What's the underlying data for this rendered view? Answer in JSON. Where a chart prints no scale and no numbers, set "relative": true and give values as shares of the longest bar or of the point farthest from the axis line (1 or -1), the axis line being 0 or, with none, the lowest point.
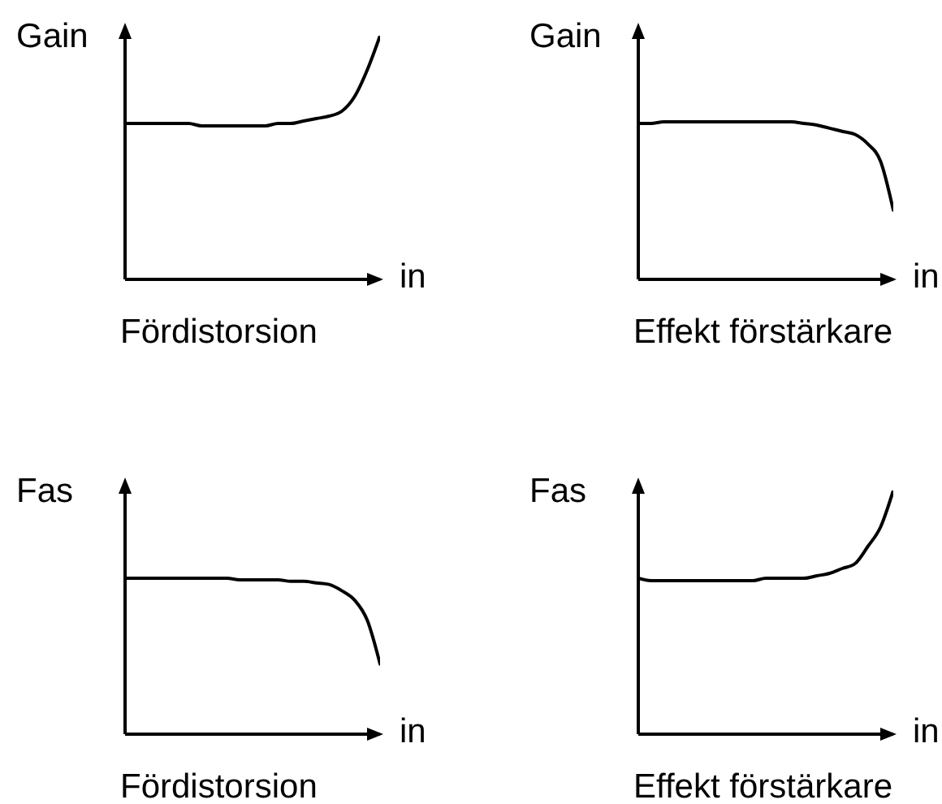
{
  "chart_data": [
    {
      "type": "line",
      "title": "Fördistorsion",
      "xlabel": "in",
      "ylabel": "Gain",
      "relative": true,
      "marker": "none",
      "color": "#000000",
      "categories": [
        null,
        null,
        null,
        null,
        null,
        null,
        null,
        null,
        null,
        null,
        null,
        null,
        null,
        null,
        null,
        null,
        null,
        null,
        null,
        null,
        null
      ],
      "values": [
        0.64,
        0.64,
        0.64,
        0.64,
        0.64,
        0.64,
        0.63,
        0.63,
        0.63,
        0.63,
        0.63,
        0.63,
        0.64,
        0.64,
        0.65,
        0.66,
        0.67,
        0.69,
        0.75,
        0.86,
        1.0
      ]
    },
    {
      "type": "line",
      "title": "Effekt förstärkare",
      "xlabel": "in",
      "ylabel": "Gain",
      "relative": true,
      "marker": "none",
      "color": "#000000",
      "categories": [
        null,
        null,
        null,
        null,
        null,
        null,
        null,
        null,
        null,
        null,
        null,
        null,
        null,
        null,
        null,
        null,
        null,
        null,
        null,
        null,
        null
      ],
      "values": [
        0.99,
        0.99,
        1.0,
        1.0,
        1.0,
        1.0,
        1.0,
        1.0,
        1.0,
        1.0,
        1.0,
        1.0,
        1.0,
        0.99,
        0.98,
        0.96,
        0.94,
        0.92,
        0.86,
        0.75,
        0.44
      ]
    },
    {
      "type": "line",
      "title": "Fördistorsion",
      "xlabel": "in",
      "ylabel": "Fas",
      "relative": true,
      "marker": "none",
      "color": "#000000",
      "categories": [
        null,
        null,
        null,
        null,
        null,
        null,
        null,
        null,
        null,
        null,
        null,
        null,
        null,
        null,
        null,
        null,
        null,
        null,
        null,
        null,
        null
      ],
      "values": [
        1.0,
        1.0,
        1.0,
        1.0,
        1.0,
        1.0,
        1.0,
        1.0,
        1.0,
        0.99,
        0.99,
        0.99,
        0.99,
        0.98,
        0.98,
        0.97,
        0.96,
        0.92,
        0.86,
        0.73,
        0.45
      ]
    },
    {
      "type": "line",
      "title": "Effekt förstärkare",
      "xlabel": "in",
      "ylabel": "Fas",
      "relative": true,
      "marker": "none",
      "color": "#000000",
      "categories": [
        null,
        null,
        null,
        null,
        null,
        null,
        null,
        null,
        null,
        null,
        null,
        null,
        null,
        null,
        null,
        null,
        null,
        null,
        null,
        null,
        null
      ],
      "values": [
        0.64,
        0.63,
        0.63,
        0.63,
        0.63,
        0.63,
        0.63,
        0.63,
        0.63,
        0.63,
        0.64,
        0.64,
        0.64,
        0.64,
        0.65,
        0.66,
        0.68,
        0.7,
        0.77,
        0.85,
        1.0
      ]
    }
  ]
}
